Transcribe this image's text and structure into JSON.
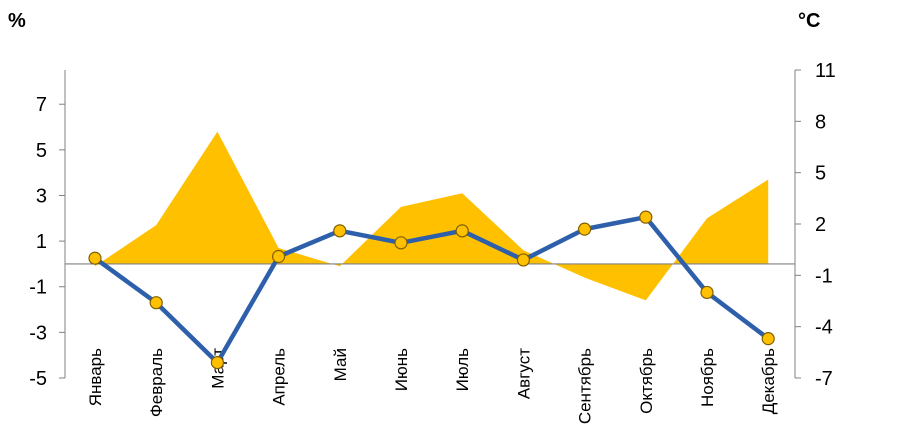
{
  "chart_data": {
    "type": "line",
    "categories": [
      "Январь",
      "Февраль",
      "Март",
      "Апрель",
      "Май",
      "Июнь",
      "Июль",
      "Август",
      "Сентябрь",
      "Октябрь",
      "Ноябрь",
      "Декабрь"
    ],
    "left_axis": {
      "label": "%",
      "ticks": [
        7,
        5,
        3,
        1,
        -1,
        -3,
        -5
      ],
      "range": [
        -5,
        8.5
      ]
    },
    "right_axis": {
      "label": "°C",
      "ticks": [
        11,
        8,
        5,
        2,
        -1,
        -4,
        -7
      ],
      "range": [
        -7,
        11
      ]
    },
    "series": [
      {
        "kind": "area",
        "axis": "left",
        "color": "#FFC000",
        "values": [
          -0.1,
          1.7,
          5.8,
          0.7,
          -0.1,
          2.5,
          3.1,
          0.6,
          -0.6,
          -1.6,
          2.0,
          3.7
        ]
      },
      {
        "kind": "line",
        "axis": "right",
        "color": "#2E5FAB",
        "marker_color": "#FFC000",
        "values": [
          0,
          -2.6,
          -6.1,
          0.1,
          1.6,
          0.9,
          1.6,
          -0.1,
          1.7,
          2.4,
          -2.0,
          -4.7
        ]
      }
    ],
    "grid": false,
    "legend": "none"
  }
}
